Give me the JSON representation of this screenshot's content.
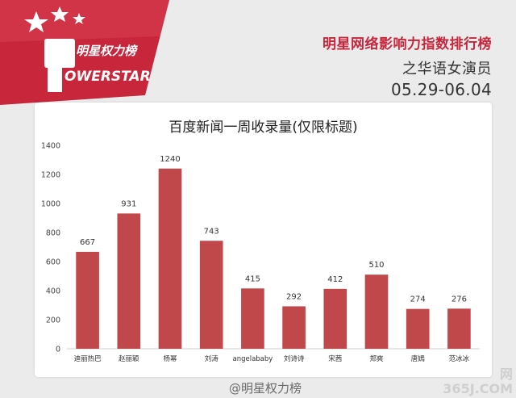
{
  "brand": {
    "name_cn": "明星权力榜",
    "name_en": "OWERSTAR",
    "accent_color": "#c7263b"
  },
  "header": {
    "title": "明星网络影响力指数排行榜",
    "subtitle": "之华语女演员",
    "date_range": "05.29-06.04"
  },
  "watermark": {
    "weibo_handle": "@明星权力榜",
    "site_line1": "网",
    "site_line2": "365J.COM"
  },
  "chart_data": {
    "type": "bar",
    "title": "百度新闻一周收录量(仅限标题)",
    "categories": [
      "迪丽热巴",
      "赵丽颖",
      "杨幂",
      "刘涛",
      "angelababy",
      "刘诗诗",
      "宋茜",
      "郑爽",
      "唐嫣",
      "范冰冰"
    ],
    "values": [
      667,
      931,
      1240,
      743,
      415,
      292,
      412,
      510,
      274,
      276
    ],
    "ylim": [
      0,
      1400
    ],
    "yticks": [
      0,
      200,
      400,
      600,
      800,
      1000,
      1200,
      1400
    ],
    "bar_color": "#c0484b",
    "grid": false
  }
}
